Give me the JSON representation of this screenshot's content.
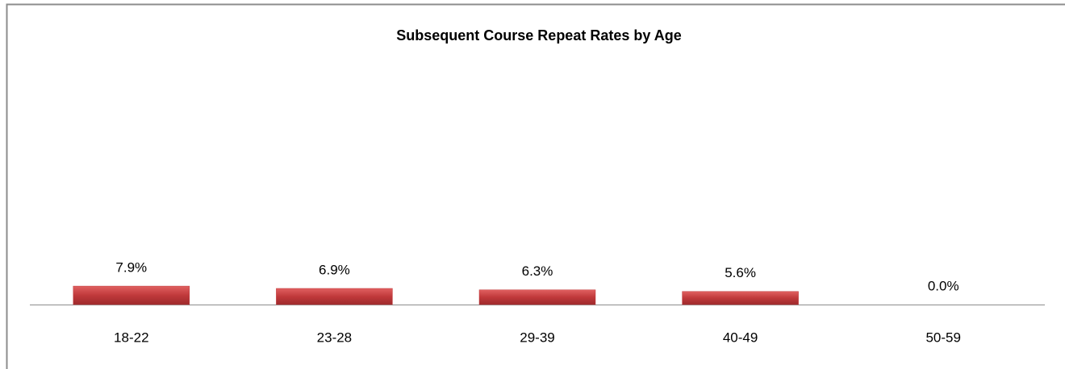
{
  "chart_data": {
    "type": "bar",
    "title": "Subsequent Course Repeat Rates by Age",
    "categories": [
      "18-22",
      "23-28",
      "29-39",
      "40-49",
      "50-59"
    ],
    "values": [
      7.9,
      6.9,
      6.3,
      5.6,
      0.0
    ],
    "value_labels": [
      "7.9%",
      "6.9%",
      "6.3%",
      "5.6%",
      "0.0%"
    ],
    "color": "#c0393b",
    "ylim": [
      0,
      100
    ]
  }
}
